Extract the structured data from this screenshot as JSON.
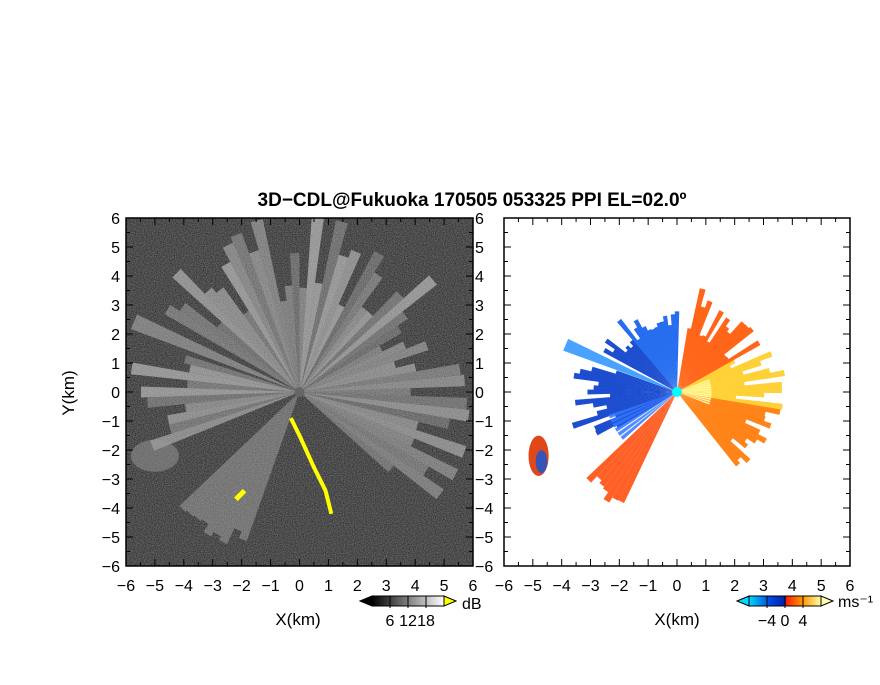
{
  "title": "3D−CDL@Fukuoka 170505 053325 PPI EL=02.0º",
  "chart_data": [
    {
      "type": "heatmap",
      "panel": "left",
      "quantity_unit": "dB",
      "xlabel": "X(km)",
      "ylabel": "Y(km)",
      "xlim": [
        -6,
        6
      ],
      "ylim": [
        -6,
        6
      ],
      "x_ticks": [
        "−6",
        "−5",
        "−4",
        "−3",
        "−2",
        "−1",
        "0",
        "1",
        "2",
        "3",
        "4",
        "5",
        "6"
      ],
      "y_ticks": [
        "6",
        "5",
        "4",
        "3",
        "2",
        "1",
        "0",
        "−1",
        "−2",
        "−3",
        "−4",
        "−5",
        "−6"
      ],
      "colorbar": {
        "unit": "dB",
        "range": [
          0,
          24
        ],
        "tick_labels": [
          "6",
          "12",
          "18"
        ],
        "colors": [
          "#000000",
          "#ffffff"
        ],
        "mask_color": "#ffff00"
      }
    },
    {
      "type": "heatmap",
      "panel": "right",
      "quantity_unit": "ms⁻¹",
      "xlabel": "X(km)",
      "xlim": [
        -6,
        6
      ],
      "ylim": [
        -6,
        6
      ],
      "x_ticks": [
        "−6",
        "−5",
        "−4",
        "−3",
        "−2",
        "−1",
        "0",
        "1",
        "2",
        "3",
        "4",
        "5",
        "6"
      ],
      "y_ticks": [
        "6",
        "5",
        "4",
        "3",
        "2",
        "1",
        "0",
        "−1",
        "−2",
        "−3",
        "−4",
        "−5",
        "−6"
      ],
      "colorbar": {
        "unit": "ms⁻¹",
        "range": [
          -6,
          6
        ],
        "tick_labels": [
          "−4",
          "0",
          "4"
        ],
        "colors": [
          "#00d8ff",
          "#0044dd",
          "#ff2200",
          "#ff9900",
          "#ffffaa"
        ]
      }
    }
  ]
}
